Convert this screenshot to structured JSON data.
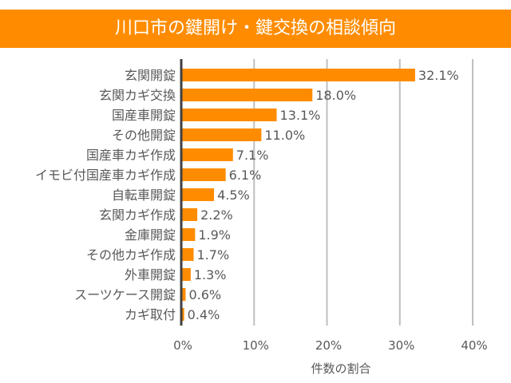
{
  "chart_data": {
    "type": "bar",
    "orientation": "horizontal",
    "title": "川口市の鍵開け・鍵交換の相談傾向",
    "xlabel": "件数の割合",
    "ylabel": "",
    "categories": [
      "玄関開錠",
      "玄関カギ交換",
      "国産車開錠",
      "その他開錠",
      "国産車カギ作成",
      "イモビ付国産車カギ作成",
      "自転車開錠",
      "玄関カギ作成",
      "金庫開錠",
      "その他カギ作成",
      "外車開錠",
      "スーツケース開錠",
      "カギ取付"
    ],
    "values": [
      32.1,
      18.0,
      13.1,
      11.0,
      7.1,
      6.1,
      4.5,
      2.2,
      1.9,
      1.7,
      1.3,
      0.6,
      0.4
    ],
    "data_labels": [
      "32.1%",
      "18.0%",
      "13.1%",
      "11.0%",
      "7.1%",
      "6.1%",
      "4.5%",
      "2.2%",
      "1.9%",
      "1.7%",
      "1.3%",
      "0.6%",
      "0.4%"
    ],
    "xlim": [
      0,
      40
    ],
    "xticks": [
      0,
      10,
      20,
      30,
      40
    ],
    "xtick_labels": [
      "0%",
      "10%",
      "20%",
      "30%",
      "40%"
    ],
    "grid": "vertical",
    "legend": "none",
    "colors": {
      "bar": "#FF8C00",
      "banner": "#FF8C00",
      "text": "#595959",
      "grid": "#BFBFBF",
      "axis": "#404040"
    }
  }
}
